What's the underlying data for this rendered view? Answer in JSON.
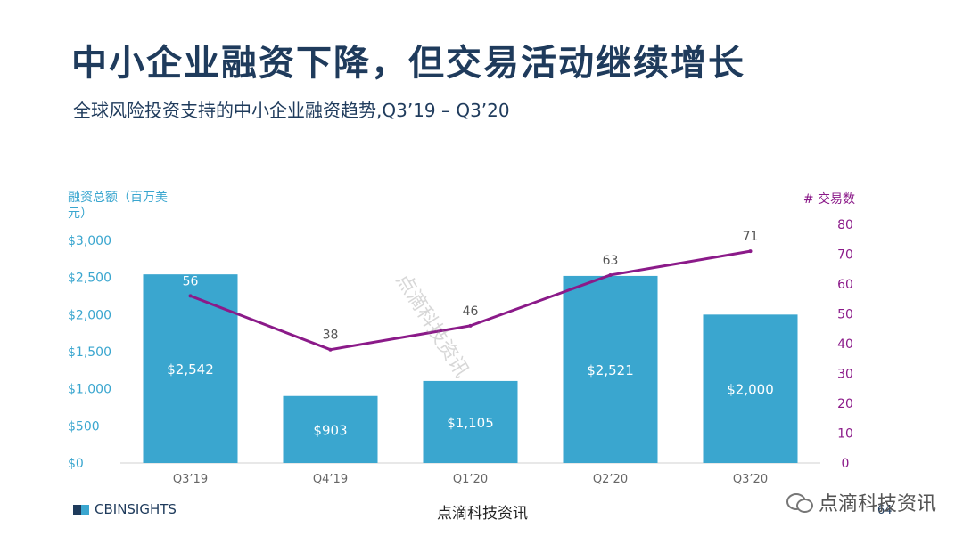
{
  "header": {
    "title": "中小企业融资下降，但交易活动继续增长",
    "subtitle": "全球风险投资支持的中小企业融资趋势,Q3’19 – Q3’20"
  },
  "chart_data": {
    "type": "bar",
    "categories": [
      "Q3’19",
      "Q4’19",
      "Q1’20",
      "Q2’20",
      "Q3’20"
    ],
    "series": [
      {
        "name": "融资总额（百万美元）",
        "type": "bar",
        "axis": "left",
        "values": [
          2542,
          903,
          1105,
          2521,
          2000
        ],
        "labels": [
          "$2,542",
          "$903",
          "$1,105",
          "$2,521",
          "$2,000"
        ]
      },
      {
        "name": "# 交易数",
        "type": "line",
        "axis": "right",
        "values": [
          56,
          38,
          46,
          63,
          71
        ],
        "labels": [
          "56",
          "38",
          "46",
          "63",
          "71"
        ]
      }
    ],
    "ylabel_left": "融资总额（百万美元）",
    "ylabel_right": "# 交易数",
    "ylim_left": [
      0,
      3000
    ],
    "ylim_right": [
      0,
      80
    ],
    "left_ticks": [
      {
        "value": 0,
        "label": "$0"
      },
      {
        "value": 500,
        "label": "$500"
      },
      {
        "value": 1000,
        "label": "$1,000"
      },
      {
        "value": 1500,
        "label": "$1,500"
      },
      {
        "value": 2000,
        "label": "$2,000"
      },
      {
        "value": 2500,
        "label": "$2,500"
      },
      {
        "value": 3000,
        "label": "$3,000"
      }
    ],
    "right_ticks": [
      {
        "value": 0,
        "label": "0"
      },
      {
        "value": 10,
        "label": "10"
      },
      {
        "value": 20,
        "label": "20"
      },
      {
        "value": 30,
        "label": "30"
      },
      {
        "value": 40,
        "label": "40"
      },
      {
        "value": 50,
        "label": "50"
      },
      {
        "value": 60,
        "label": "60"
      },
      {
        "value": 70,
        "label": "70"
      },
      {
        "value": 80,
        "label": "80"
      }
    ],
    "grid": false,
    "colors": {
      "bar": "#3aa6cf",
      "line": "#8b1a89",
      "left_axis": "#3aa6cf",
      "right_axis": "#8b1a89"
    }
  },
  "footer": {
    "logo_text": "CBINSIGHTS",
    "source": "点滴科技资讯",
    "page": "64"
  },
  "watermarks": {
    "diagonal": "点滴科技资讯",
    "wechat": "点滴科技资讯"
  }
}
